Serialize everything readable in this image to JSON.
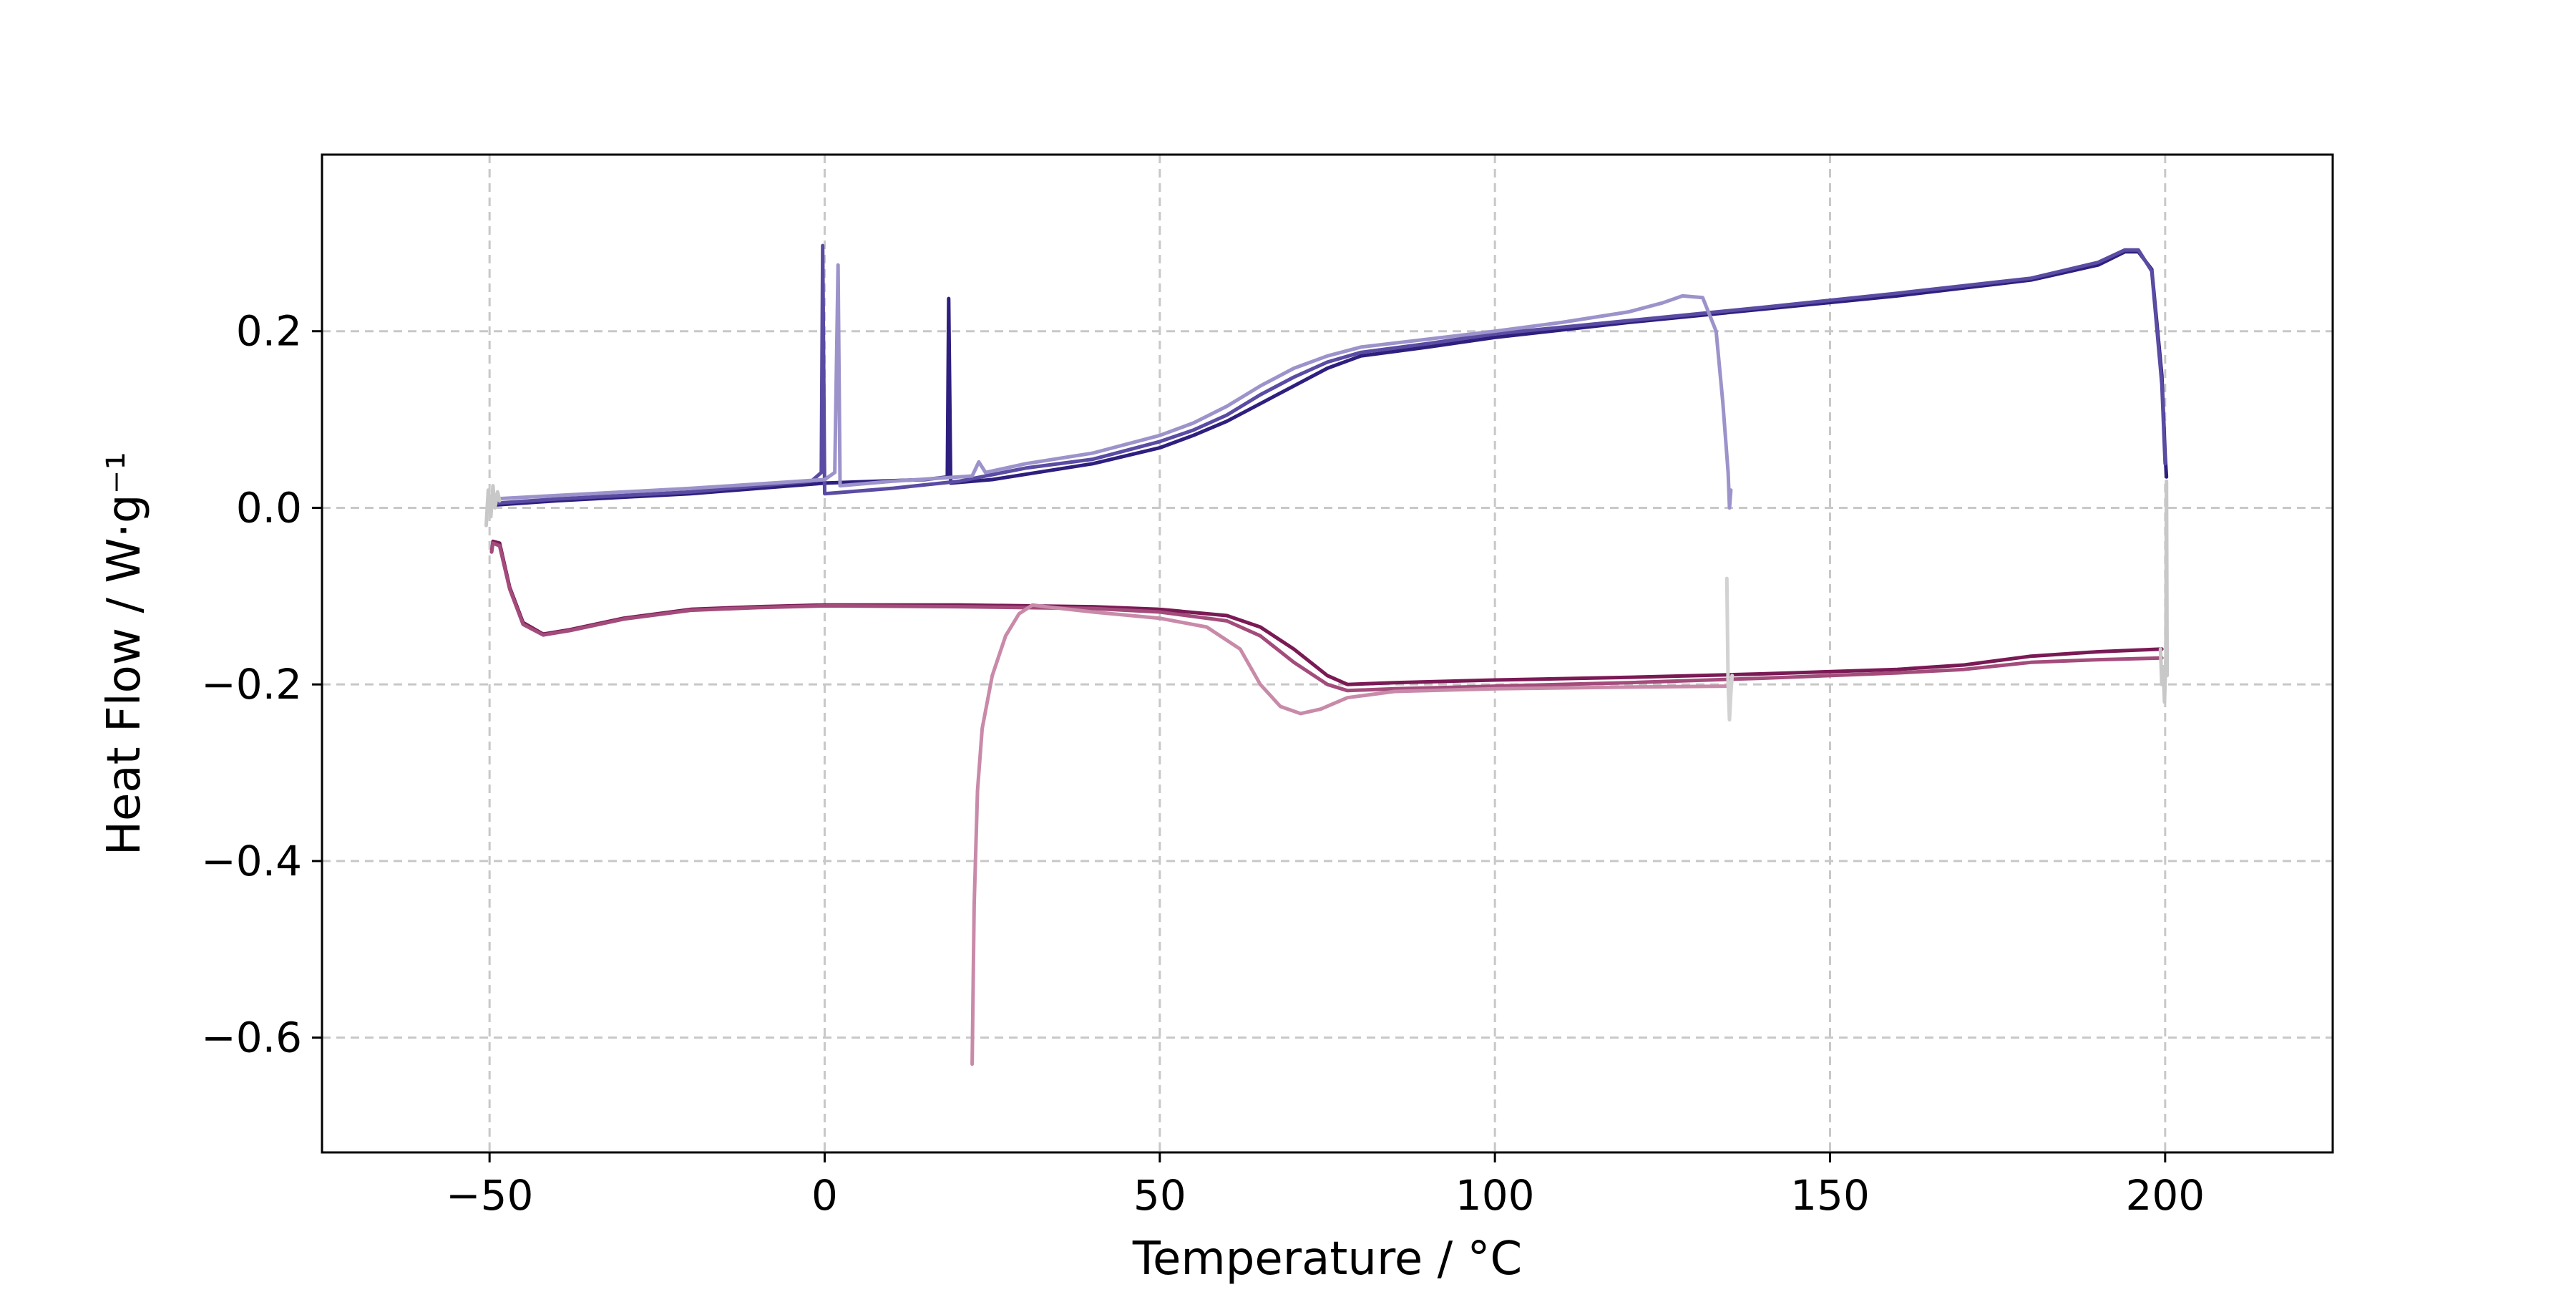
{
  "chart_data": {
    "type": "line",
    "title": "",
    "xlabel": "Temperature / °C",
    "ylabel": "Heat Flow / W·g⁻¹",
    "xlim": [
      -75,
      225
    ],
    "ylim": [
      -0.73,
      0.4
    ],
    "xticks": [
      -50,
      0,
      50,
      100,
      150,
      200
    ],
    "xtick_labels": [
      "−50",
      "0",
      "50",
      "100",
      "150",
      "200"
    ],
    "yticks": [
      0.2,
      0.0,
      -0.2,
      -0.4,
      -0.6
    ],
    "ytick_labels": [
      "0.2",
      "0.0",
      "−0.2",
      "−0.4",
      "−0.6"
    ],
    "grid": true,
    "legend": "none",
    "series": [
      {
        "color": "#2e1f7f",
        "values": [
          [
            -49.5,
            0.003
          ],
          [
            -40,
            0.008
          ],
          [
            -20,
            0.016
          ],
          [
            0,
            0.028
          ],
          [
            15,
            0.032
          ],
          [
            18.3,
            0.035
          ],
          [
            18.5,
            0.237
          ],
          [
            18.8,
            0.028
          ],
          [
            25,
            0.032
          ],
          [
            40,
            0.05
          ],
          [
            50,
            0.068
          ],
          [
            55,
            0.082
          ],
          [
            60,
            0.098
          ],
          [
            65,
            0.118
          ],
          [
            70,
            0.138
          ],
          [
            75,
            0.158
          ],
          [
            80,
            0.172
          ],
          [
            90,
            0.182
          ],
          [
            100,
            0.193
          ],
          [
            120,
            0.21
          ],
          [
            140,
            0.225
          ],
          [
            160,
            0.24
          ],
          [
            180,
            0.258
          ],
          [
            190,
            0.275
          ],
          [
            194,
            0.29
          ],
          [
            196,
            0.29
          ],
          [
            198,
            0.27
          ],
          [
            199.5,
            0.15
          ],
          [
            200,
            0.06
          ],
          [
            200.2,
            0.035
          ]
        ]
      },
      {
        "color": "#5a4ba3",
        "values": [
          [
            -49.5,
            0.005
          ],
          [
            -40,
            0.01
          ],
          [
            -20,
            0.018
          ],
          [
            -2,
            0.03
          ],
          [
            -0.5,
            0.04
          ],
          [
            -0.3,
            0.297
          ],
          [
            0,
            0.016
          ],
          [
            10,
            0.022
          ],
          [
            20,
            0.03
          ],
          [
            30,
            0.045
          ],
          [
            40,
            0.055
          ],
          [
            50,
            0.075
          ],
          [
            55,
            0.088
          ],
          [
            60,
            0.105
          ],
          [
            65,
            0.128
          ],
          [
            70,
            0.148
          ],
          [
            75,
            0.165
          ],
          [
            80,
            0.176
          ],
          [
            90,
            0.186
          ],
          [
            100,
            0.197
          ],
          [
            120,
            0.212
          ],
          [
            140,
            0.227
          ],
          [
            160,
            0.243
          ],
          [
            180,
            0.26
          ],
          [
            190,
            0.278
          ],
          [
            194,
            0.292
          ],
          [
            196,
            0.292
          ],
          [
            198,
            0.268
          ],
          [
            199.5,
            0.14
          ],
          [
            200,
            0.05
          ]
        ]
      },
      {
        "color": "#9c93cb",
        "values": [
          [
            -49.5,
            0.01
          ],
          [
            -40,
            0.014
          ],
          [
            -20,
            0.022
          ],
          [
            0,
            0.032
          ],
          [
            1.5,
            0.04
          ],
          [
            2,
            0.275
          ],
          [
            2.3,
            0.025
          ],
          [
            10,
            0.03
          ],
          [
            22,
            0.036
          ],
          [
            23,
            0.052
          ],
          [
            24,
            0.04
          ],
          [
            30,
            0.05
          ],
          [
            40,
            0.062
          ],
          [
            50,
            0.082
          ],
          [
            55,
            0.096
          ],
          [
            60,
            0.115
          ],
          [
            65,
            0.138
          ],
          [
            70,
            0.158
          ],
          [
            75,
            0.172
          ],
          [
            80,
            0.182
          ],
          [
            90,
            0.191
          ],
          [
            100,
            0.2
          ],
          [
            110,
            0.21
          ],
          [
            120,
            0.222
          ],
          [
            125,
            0.232
          ],
          [
            128,
            0.24
          ],
          [
            131,
            0.238
          ],
          [
            133,
            0.2
          ],
          [
            134,
            0.12
          ],
          [
            134.8,
            0.04
          ],
          [
            135,
            0.0
          ],
          [
            135.2,
            0.02
          ]
        ]
      },
      {
        "color": "#7a1a55",
        "values": [
          [
            -49.7,
            -0.05
          ],
          [
            -49.5,
            -0.038
          ],
          [
            -48.5,
            -0.04
          ],
          [
            -47,
            -0.09
          ],
          [
            -45,
            -0.13
          ],
          [
            -42,
            -0.143
          ],
          [
            -38,
            -0.138
          ],
          [
            -30,
            -0.125
          ],
          [
            -20,
            -0.115
          ],
          [
            -10,
            -0.112
          ],
          [
            0,
            -0.11
          ],
          [
            20,
            -0.11
          ],
          [
            40,
            -0.112
          ],
          [
            50,
            -0.115
          ],
          [
            60,
            -0.122
          ],
          [
            65,
            -0.135
          ],
          [
            70,
            -0.16
          ],
          [
            75,
            -0.19
          ],
          [
            78,
            -0.2
          ],
          [
            85,
            -0.198
          ],
          [
            100,
            -0.195
          ],
          [
            120,
            -0.192
          ],
          [
            140,
            -0.188
          ],
          [
            160,
            -0.183
          ],
          [
            170,
            -0.178
          ],
          [
            180,
            -0.168
          ],
          [
            190,
            -0.163
          ],
          [
            199.5,
            -0.16
          ]
        ]
      },
      {
        "color": "#a34c7b",
        "values": [
          [
            -49.7,
            -0.05
          ],
          [
            -49.5,
            -0.04
          ],
          [
            -48.5,
            -0.043
          ],
          [
            -47,
            -0.092
          ],
          [
            -45,
            -0.132
          ],
          [
            -42,
            -0.144
          ],
          [
            -38,
            -0.139
          ],
          [
            -30,
            -0.126
          ],
          [
            -20,
            -0.116
          ],
          [
            -10,
            -0.113
          ],
          [
            0,
            -0.111
          ],
          [
            20,
            -0.112
          ],
          [
            40,
            -0.114
          ],
          [
            50,
            -0.118
          ],
          [
            60,
            -0.128
          ],
          [
            65,
            -0.145
          ],
          [
            70,
            -0.175
          ],
          [
            75,
            -0.2
          ],
          [
            78,
            -0.207
          ],
          [
            85,
            -0.205
          ],
          [
            100,
            -0.202
          ],
          [
            120,
            -0.198
          ],
          [
            140,
            -0.193
          ],
          [
            160,
            -0.187
          ],
          [
            170,
            -0.183
          ],
          [
            180,
            -0.175
          ],
          [
            190,
            -0.172
          ],
          [
            199.5,
            -0.17
          ]
        ]
      },
      {
        "color": "#c98aa9",
        "values": [
          [
            22,
            -0.63
          ],
          [
            22.3,
            -0.45
          ],
          [
            22.8,
            -0.32
          ],
          [
            23.5,
            -0.25
          ],
          [
            25,
            -0.19
          ],
          [
            27,
            -0.145
          ],
          [
            29,
            -0.12
          ],
          [
            31,
            -0.11
          ],
          [
            33,
            -0.112
          ],
          [
            40,
            -0.118
          ],
          [
            50,
            -0.125
          ],
          [
            57,
            -0.135
          ],
          [
            62,
            -0.16
          ],
          [
            65,
            -0.2
          ],
          [
            68,
            -0.225
          ],
          [
            71,
            -0.233
          ],
          [
            74,
            -0.228
          ],
          [
            78,
            -0.215
          ],
          [
            85,
            -0.208
          ],
          [
            100,
            -0.205
          ],
          [
            120,
            -0.203
          ],
          [
            134.5,
            -0.202
          ]
        ]
      },
      {
        "color": "#c8c8c8",
        "values": [
          [
            -50.5,
            -0.02
          ],
          [
            -50.2,
            0.02
          ],
          [
            -49.8,
            -0.01
          ],
          [
            -49.5,
            0.025
          ],
          [
            -49.2,
            0.0
          ],
          [
            -48.8,
            0.018
          ],
          [
            -48.5,
            0.008
          ]
        ]
      },
      {
        "color": "#d2d2d2",
        "values": [
          [
            134.6,
            -0.08
          ],
          [
            134.8,
            -0.2
          ],
          [
            135,
            -0.24
          ],
          [
            135.2,
            -0.21
          ],
          [
            135.4,
            -0.19
          ]
        ]
      },
      {
        "color": "#c8c8c8",
        "values": [
          [
            199.3,
            -0.16
          ],
          [
            199.5,
            -0.2
          ],
          [
            199.7,
            -0.18
          ],
          [
            199.9,
            -0.22
          ],
          [
            200.1,
            -0.17
          ],
          [
            200.2,
            0.03
          ],
          [
            200.3,
            -0.19
          ]
        ]
      }
    ]
  }
}
